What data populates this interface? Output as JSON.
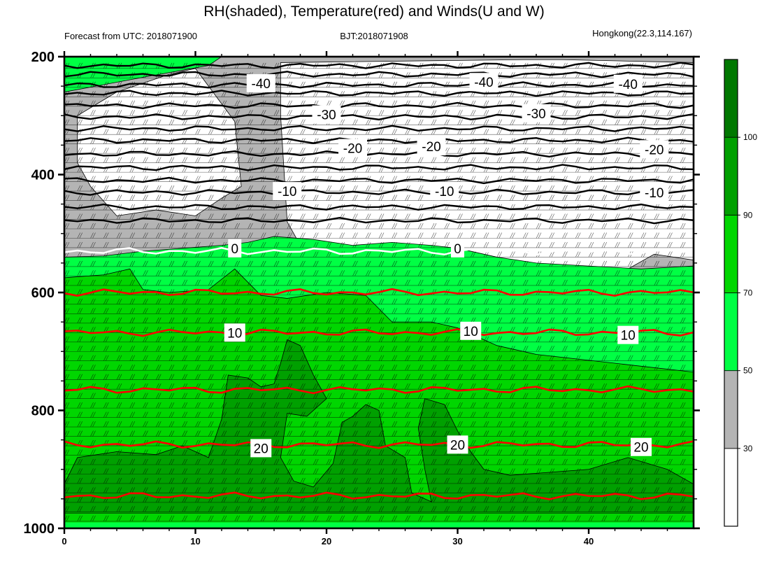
{
  "chart_data": {
    "type": "heatmap",
    "title": "RH(shaded), Temperature(red) and Winds(U and W)",
    "subtitle_left": "Forecast from UTC: 2018071900",
    "subtitle_center": "BJT:2018071908",
    "subtitle_right": "Hongkong(22.3,114.167)",
    "x_axis": {
      "range": [
        0,
        48
      ],
      "ticks": [
        0,
        10,
        20,
        30,
        40
      ],
      "tick_labels": [
        "0",
        "10",
        "20",
        "30",
        "40"
      ]
    },
    "y_axis": {
      "range": [
        200,
        1000
      ],
      "reversed": true,
      "ticks": [
        200,
        400,
        600,
        800,
        1000
      ],
      "tick_labels": [
        "200",
        "400",
        "600",
        "800",
        "1000"
      ]
    },
    "colorbar": {
      "levels": [
        "30",
        "50",
        "70",
        "90",
        "100"
      ],
      "colors": [
        "#ffffff",
        "#b4b4b4",
        "#00ff44",
        "#00d600",
        "#00a000",
        "#007800"
      ]
    },
    "rh_regions": [
      {
        "class": 2,
        "outline": [
          [
            0,
            540
          ],
          [
            3,
            538
          ],
          [
            6,
            530
          ],
          [
            9,
            525
          ],
          [
            12,
            520
          ],
          [
            14,
            515
          ],
          [
            16,
            505
          ],
          [
            19,
            510
          ],
          [
            22,
            520
          ],
          [
            25,
            515
          ],
          [
            28,
            520
          ],
          [
            30,
            525
          ],
          [
            33,
            540
          ],
          [
            36,
            550
          ],
          [
            40,
            555
          ],
          [
            44,
            560
          ],
          [
            48,
            555
          ],
          [
            48,
            1000
          ],
          [
            0,
            1000
          ]
        ]
      },
      {
        "class": 3,
        "outline": [
          [
            0,
            575
          ],
          [
            3,
            570
          ],
          [
            5,
            560
          ],
          [
            6,
            595
          ],
          [
            8,
            600
          ],
          [
            11,
            595
          ],
          [
            13,
            560
          ],
          [
            15,
            605
          ],
          [
            17,
            610
          ],
          [
            20,
            600
          ],
          [
            23,
            605
          ],
          [
            25,
            650
          ],
          [
            28,
            650
          ],
          [
            30,
            660
          ],
          [
            33,
            690
          ],
          [
            36,
            705
          ],
          [
            40,
            715
          ],
          [
            44,
            725
          ],
          [
            48,
            735
          ],
          [
            48,
            1000
          ],
          [
            0,
            1000
          ]
        ]
      },
      {
        "class": 4,
        "outline": [
          [
            0,
            925
          ],
          [
            1,
            880
          ],
          [
            4,
            870
          ],
          [
            7,
            875
          ],
          [
            9,
            860
          ],
          [
            11,
            880
          ],
          [
            12,
            815
          ],
          [
            12.5,
            740
          ],
          [
            14,
            745
          ],
          [
            15,
            760
          ],
          [
            16,
            755
          ],
          [
            16.5,
            720
          ],
          [
            17,
            680
          ],
          [
            18,
            690
          ],
          [
            19,
            740
          ],
          [
            20,
            780
          ],
          [
            18.5,
            810
          ],
          [
            17,
            805
          ],
          [
            16.5,
            880
          ],
          [
            17.5,
            920
          ],
          [
            19,
            930
          ],
          [
            20.5,
            890
          ],
          [
            21.2,
            820
          ],
          [
            22,
            810
          ],
          [
            23,
            790
          ],
          [
            24,
            800
          ],
          [
            24.5,
            860
          ],
          [
            26,
            880
          ],
          [
            26.5,
            940
          ],
          [
            28,
            955
          ],
          [
            27.5,
            900
          ],
          [
            27,
            830
          ],
          [
            27.5,
            780
          ],
          [
            29,
            790
          ],
          [
            30,
            835
          ],
          [
            31,
            870
          ],
          [
            32,
            900
          ],
          [
            34,
            910
          ],
          [
            37,
            905
          ],
          [
            40,
            900
          ],
          [
            43,
            880
          ],
          [
            46,
            900
          ],
          [
            48,
            925
          ],
          [
            48,
            975
          ],
          [
            0,
            975
          ]
        ]
      },
      {
        "class": 5,
        "outline": [
          [
            20.5,
            1000
          ],
          [
            21,
            985
          ],
          [
            22,
            990
          ],
          [
            23,
            985
          ],
          [
            24,
            990
          ],
          [
            25,
            985
          ],
          [
            26,
            990
          ],
          [
            26,
            1000
          ]
        ]
      }
    ],
    "temperature_contours": [
      {
        "label": "0",
        "pressure": 530,
        "color": "#ffffff"
      },
      {
        "label": "10",
        "pressure": 668,
        "color": "#ff0000"
      },
      {
        "label": "20",
        "pressure": 858,
        "color": "#ff0000"
      }
    ],
    "contour_labels": [
      "-40",
      "-30",
      "-20",
      "-10",
      "0",
      "10",
      "20"
    ]
  }
}
